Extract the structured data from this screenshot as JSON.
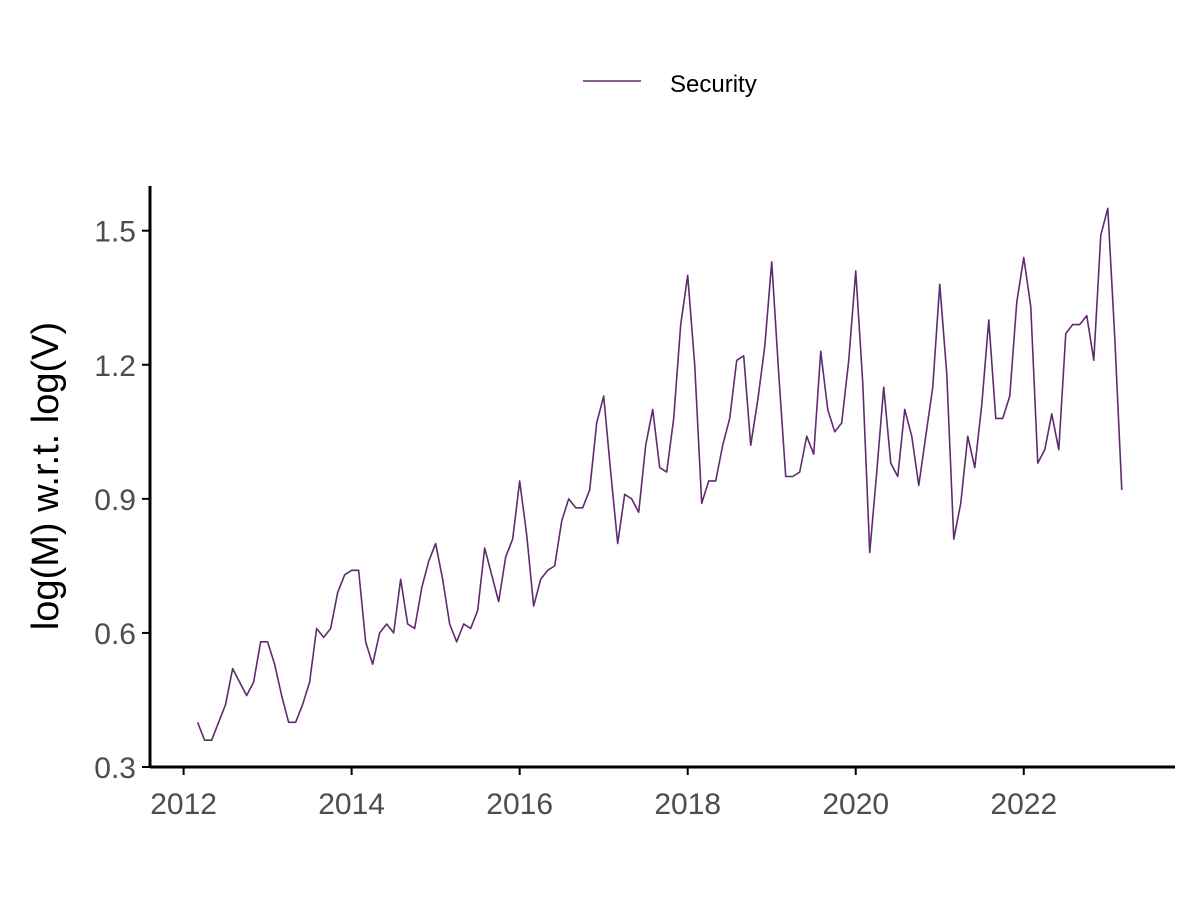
{
  "chart_data": {
    "type": "line",
    "title": "",
    "xlabel": "",
    "ylabel": "log(M) w.r.t. log(V)",
    "xlim": [
      2011.6,
      2023.8
    ],
    "ylim": [
      0.3,
      1.6
    ],
    "x_ticks": [
      2012,
      2014,
      2016,
      2018,
      2020,
      2022
    ],
    "y_ticks": [
      0.3,
      0.6,
      0.9,
      1.2,
      1.5
    ],
    "x_tick_labels": [
      "2012",
      "2014",
      "2016",
      "2018",
      "2020",
      "2022"
    ],
    "y_tick_labels": [
      "0.3",
      "0.6",
      "0.9",
      "1.2",
      "1.5"
    ],
    "grid": false,
    "legend_position": "top",
    "colors": {
      "line": "#5e2b6e",
      "axis": "#000000",
      "tick_label": "#4d4d4d"
    },
    "x_start_year": 2012,
    "x_start_month": 3,
    "x_step": "monthly",
    "series": [
      {
        "name": "Security",
        "values": [
          0.4,
          0.36,
          0.36,
          0.4,
          0.44,
          0.52,
          0.49,
          0.46,
          0.49,
          0.58,
          0.58,
          0.53,
          0.46,
          0.4,
          0.4,
          0.44,
          0.49,
          0.61,
          0.59,
          0.61,
          0.69,
          0.73,
          0.74,
          0.74,
          0.58,
          0.53,
          0.6,
          0.62,
          0.6,
          0.72,
          0.62,
          0.61,
          0.7,
          0.76,
          0.8,
          0.72,
          0.62,
          0.58,
          0.62,
          0.61,
          0.65,
          0.79,
          0.73,
          0.67,
          0.77,
          0.81,
          0.94,
          0.82,
          0.66,
          0.72,
          0.74,
          0.75,
          0.85,
          0.9,
          0.88,
          0.88,
          0.92,
          1.07,
          1.13,
          0.96,
          0.8,
          0.91,
          0.9,
          0.87,
          1.02,
          1.1,
          0.97,
          0.96,
          1.08,
          1.29,
          1.4,
          1.2,
          0.89,
          0.94,
          0.94,
          1.02,
          1.08,
          1.21,
          1.22,
          1.02,
          1.12,
          1.24,
          1.43,
          1.18,
          0.95,
          0.95,
          0.96,
          1.04,
          1.0,
          1.23,
          1.1,
          1.05,
          1.07,
          1.21,
          1.41,
          1.16,
          0.78,
          0.96,
          1.15,
          0.98,
          0.95,
          1.1,
          1.04,
          0.93,
          1.04,
          1.15,
          1.38,
          1.18,
          0.81,
          0.89,
          1.04,
          0.97,
          1.11,
          1.3,
          1.08,
          1.08,
          1.13,
          1.34,
          1.44,
          1.33,
          0.98,
          1.01,
          1.09,
          1.01,
          1.27,
          1.29,
          1.29,
          1.31,
          1.21,
          1.49,
          1.55,
          1.26,
          0.92
        ]
      }
    ]
  }
}
